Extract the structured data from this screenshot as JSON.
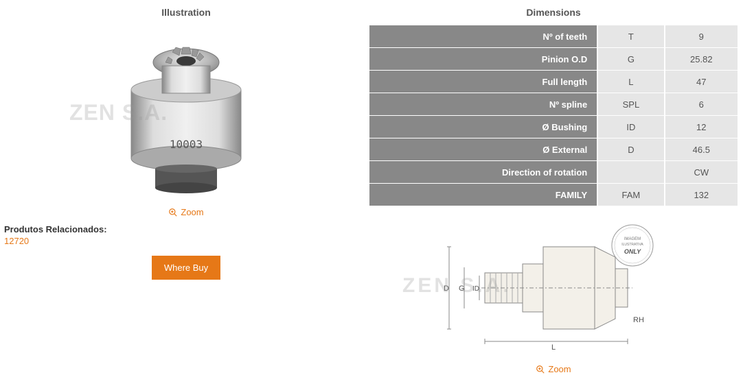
{
  "headers": {
    "illustration": "Illustration",
    "dimensions": "Dimensions"
  },
  "zoom_label": "Zoom",
  "related": {
    "label": "Produtos Relacionados:",
    "link": "12720"
  },
  "where_buy_label": "Where Buy",
  "watermark_text": "ZEN S.A.",
  "product_number": "10003",
  "dimensions_table": [
    {
      "label": "Nº of teeth",
      "code": "T",
      "value": "9"
    },
    {
      "label": "Pinion O.D",
      "code": "G",
      "value": "25.82"
    },
    {
      "label": "Full length",
      "code": "L",
      "value": "47"
    },
    {
      "label": "Nº spline",
      "code": "SPL",
      "value": "6"
    },
    {
      "label": "Ø Bushing",
      "code": "ID",
      "value": "12"
    },
    {
      "label": "Ø External",
      "code": "D",
      "value": "46.5"
    },
    {
      "label": "Direction of rotation",
      "code": "",
      "value": "CW"
    },
    {
      "label": "FAMILY",
      "code": "FAM",
      "value": "132"
    }
  ],
  "diagram": {
    "labels": {
      "D": "D",
      "G": "G",
      "ID": "ID",
      "L": "L",
      "RH": "RH"
    },
    "badge_lines": [
      "IMAGEM",
      "ILUSTRATIVA",
      "ONLY"
    ]
  },
  "colors": {
    "accent": "#e67817",
    "row_label_bg": "#888888",
    "row_value_bg": "#e6e6e6"
  }
}
